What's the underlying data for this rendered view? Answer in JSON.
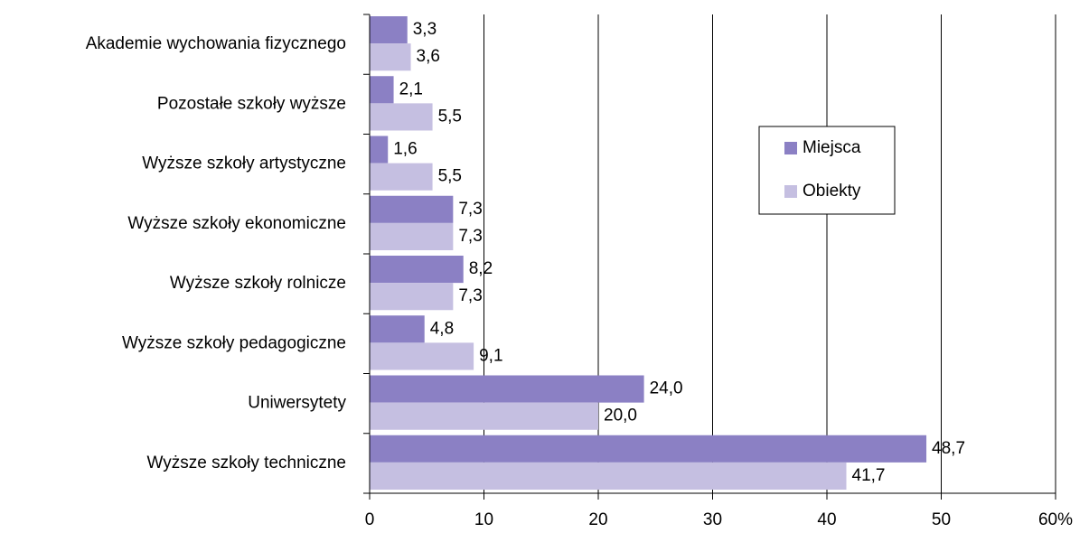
{
  "chart_data": {
    "type": "bar",
    "orientation": "horizontal",
    "categories": [
      "Akademie wychowania fizycznego",
      "Pozostałe szkoły wyższe",
      "Wyższe szkoły artystyczne",
      "Wyższe szkoły ekonomiczne",
      "Wyższe szkoły rolnicze",
      "Wyższe szkoły pedagogiczne",
      "Uniwersytety",
      "Wyższe szkoły techniczne"
    ],
    "series": [
      {
        "name": "Miejsca",
        "color": "#8b80c4",
        "values": [
          3.3,
          2.1,
          1.6,
          7.3,
          8.2,
          4.8,
          24.0,
          48.7
        ],
        "value_labels": [
          "3,3",
          "2,1",
          "1,6",
          "7,3",
          "8,2",
          "4,8",
          "24,0",
          "48,7"
        ]
      },
      {
        "name": "Obiekty",
        "color": "#c5bfe1",
        "values": [
          3.6,
          5.5,
          5.5,
          7.3,
          7.3,
          9.1,
          20.0,
          41.7
        ],
        "value_labels": [
          "3,6",
          "5,5",
          "5,5",
          "7,3",
          "7,3",
          "9,1",
          "20,0",
          "41,7"
        ]
      }
    ],
    "xlim": [
      0,
      60
    ],
    "xticks": [
      0,
      10,
      20,
      30,
      40,
      50,
      {
        "value": 60,
        "label": "60%"
      }
    ],
    "grid": true,
    "legend": "right"
  }
}
